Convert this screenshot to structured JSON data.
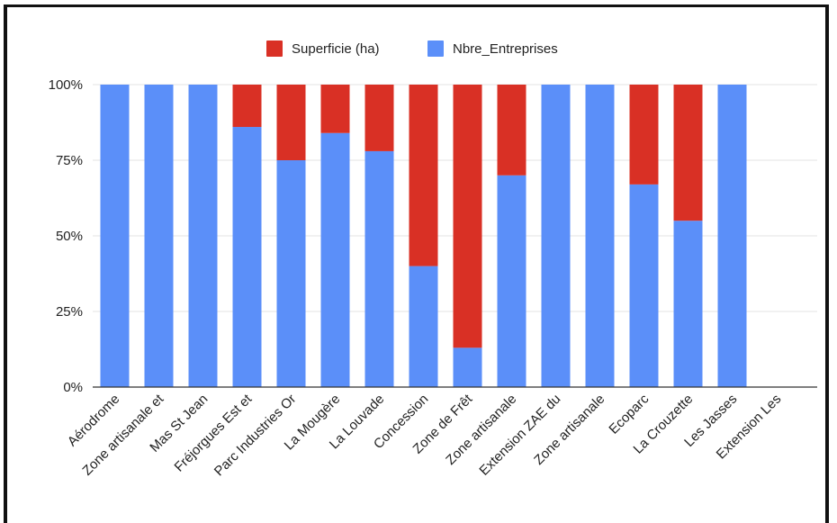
{
  "chart_data": {
    "type": "bar",
    "stacked": true,
    "stack_mode": "percent",
    "title": "",
    "xlabel": "",
    "ylabel": "",
    "ylim": [
      0,
      100
    ],
    "y_ticks": [
      "0%",
      "25%",
      "50%",
      "75%",
      "100%"
    ],
    "grid": true,
    "legend_position": "top",
    "categories": [
      "Aérodrome",
      "Zone artisanale et",
      "Mas St Jean",
      "Fréjorgues Est et",
      "Parc Industries Or",
      "La Mougère",
      "La Louvade",
      "Concession",
      "Zone de Frêt",
      "Zone artisanale",
      "Extension ZAE du",
      "Zone artisanale",
      "Ecoparc",
      "La Crouzette",
      "Les Jasses",
      "Extension Les"
    ],
    "series": [
      {
        "name": "Nbre_Entreprises",
        "color": "#5b8ff9",
        "values": [
          100,
          100,
          100,
          86,
          75,
          84,
          78,
          40,
          13,
          70,
          100,
          100,
          67,
          55,
          100,
          null
        ]
      },
      {
        "name": "Superficie (ha)",
        "color": "#d93025",
        "values": [
          0,
          0,
          0,
          14,
          25,
          16,
          22,
          60,
          87,
          30,
          0,
          0,
          33,
          45,
          0,
          null
        ]
      }
    ],
    "legend": [
      {
        "name": "Superficie (ha)",
        "color": "#d93025"
      },
      {
        "name": "Nbre_Entreprises",
        "color": "#5b8ff9"
      }
    ]
  }
}
